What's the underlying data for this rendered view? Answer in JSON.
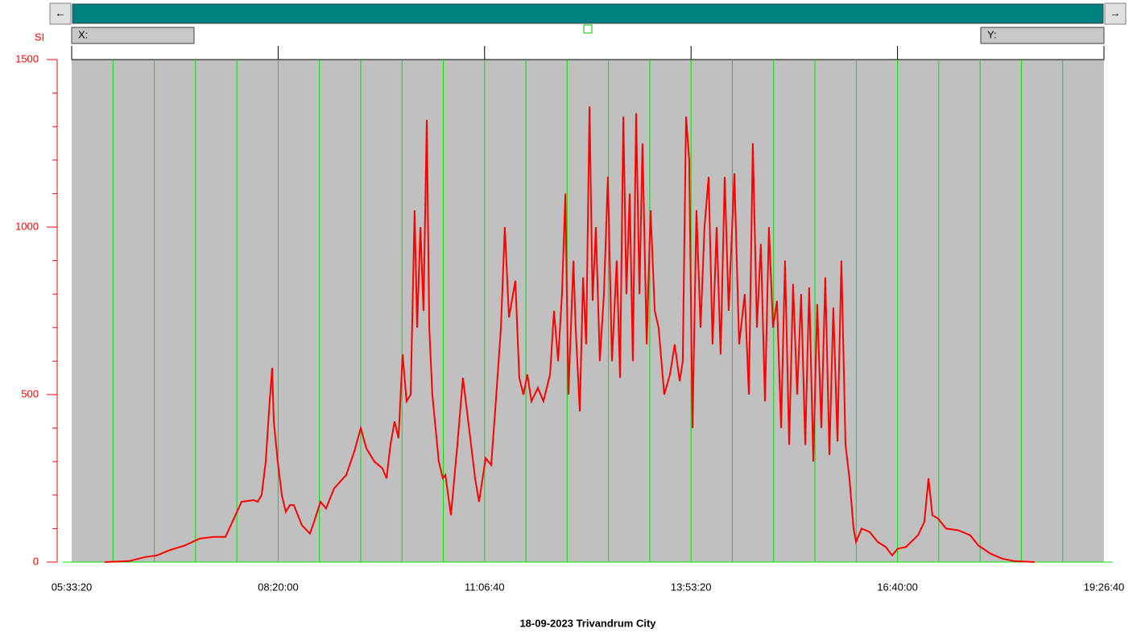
{
  "ui": {
    "left_arrow": "←",
    "right_arrow": "→",
    "x_readout": "X:",
    "y_readout": "Y:"
  },
  "chart_data": {
    "type": "line",
    "title": "18-09-2023 Trivandrum City",
    "y_label": "SI",
    "color": "#ff0000",
    "x": [
      21600,
      22770,
      23550,
      24130,
      24720,
      25500,
      26200,
      26860,
      27450,
      28230,
      28810,
      29010,
      29200,
      29400,
      29590,
      29710,
      29790,
      29980,
      30180,
      30370,
      30570,
      30760,
      31150,
      31540,
      31740,
      32050,
      32320,
      32710,
      33300,
      33690,
      34000,
      34270,
      34660,
      35050,
      35250,
      35440,
      35640,
      35830,
      36030,
      36220,
      36420,
      36610,
      36730,
      36890,
      37040,
      37200,
      37320,
      37470,
      37780,
      37980,
      38100,
      38370,
      38680,
      38950,
      39150,
      39540,
      39730,
      40050,
      40320,
      40510,
      40790,
      40980,
      41180,
      41490,
      41680,
      41880,
      42070,
      42270,
      42580,
      42850,
      43170,
      43360,
      43560,
      43750,
      43910,
      44060,
      44300,
      44410,
      44610,
      44770,
      44920,
      45080,
      45230,
      45390,
      45580,
      45780,
      45970,
      46170,
      46400,
      46560,
      46720,
      46870,
      47030,
      47180,
      47340,
      47500,
      47650,
      47850,
      48040,
      48240,
      48430,
      48700,
      48980,
      49210,
      49450,
      49600,
      49760,
      49910,
      50070,
      50260,
      50460,
      50650,
      50850,
      51040,
      51240,
      51430,
      51630,
      51820,
      52100,
      52330,
      52600,
      52800,
      52990,
      53190,
      53380,
      53580,
      53770,
      53970,
      54160,
      54360,
      54550,
      54750,
      54940,
      55140,
      55330,
      55530,
      55720,
      55920,
      56110,
      56310,
      56500,
      56700,
      56890,
      57090,
      57280,
      57480,
      57670,
      57870,
      57990,
      58260,
      58650,
      59040,
      59430,
      59740,
      60010,
      60400,
      60990,
      61300,
      61500,
      61690,
      61960,
      62350,
      62940,
      63520,
      63910,
      64500,
      65080,
      65670,
      66640
    ],
    "values": [
      0,
      3,
      15,
      20,
      35,
      50,
      70,
      75,
      75,
      180,
      185,
      180,
      200,
      300,
      480,
      580,
      420,
      300,
      200,
      150,
      170,
      170,
      110,
      85,
      120,
      180,
      160,
      220,
      260,
      330,
      400,
      340,
      300,
      280,
      250,
      350,
      420,
      370,
      620,
      480,
      500,
      1050,
      700,
      1000,
      750,
      1320,
      700,
      500,
      300,
      250,
      260,
      140,
      350,
      550,
      450,
      250,
      180,
      310,
      290,
      450,
      700,
      1000,
      730,
      840,
      550,
      500,
      560,
      480,
      520,
      480,
      560,
      750,
      600,
      800,
      1100,
      500,
      900,
      700,
      450,
      850,
      650,
      1360,
      780,
      1000,
      600,
      800,
      1150,
      600,
      900,
      550,
      1330,
      800,
      1100,
      600,
      1340,
      800,
      1250,
      650,
      1050,
      750,
      700,
      500,
      560,
      650,
      540,
      600,
      1330,
      1200,
      400,
      1050,
      700,
      1000,
      1150,
      650,
      1000,
      620,
      1150,
      750,
      1160,
      650,
      800,
      500,
      1250,
      700,
      950,
      480,
      1000,
      700,
      780,
      400,
      900,
      350,
      830,
      500,
      800,
      350,
      820,
      300,
      770,
      400,
      850,
      320,
      760,
      360,
      900,
      350,
      250,
      100,
      60,
      100,
      90,
      60,
      45,
      20,
      40,
      45,
      80,
      120,
      250,
      140,
      130,
      100,
      95,
      80,
      50,
      25,
      10,
      3,
      0
    ],
    "xlim": [
      20000,
      70000
    ],
    "xticks": [
      {
        "value": 20000,
        "label": "05:33:20"
      },
      {
        "value": 30000,
        "label": "08:20:00"
      },
      {
        "value": 40000,
        "label": "11:06:40"
      },
      {
        "value": 50000,
        "label": "13:53:20"
      },
      {
        "value": 60000,
        "label": "16:40:00"
      },
      {
        "value": 70000,
        "label": "19:26:40"
      }
    ],
    "x_grid": [
      22000,
      24000,
      26000,
      28000,
      30000,
      32000,
      34000,
      36000,
      38000,
      40000,
      42000,
      44000,
      46000,
      48000,
      50000,
      52000,
      54000,
      56000,
      58000,
      60000,
      62000,
      64000,
      66000,
      68000
    ],
    "ylim": [
      0,
      1500
    ],
    "yticks": [
      0,
      500,
      1000,
      1500
    ],
    "y_minor_ticks": [
      100,
      200,
      300,
      400,
      600,
      700,
      800,
      900,
      1100,
      1200,
      1300,
      1400
    ]
  }
}
